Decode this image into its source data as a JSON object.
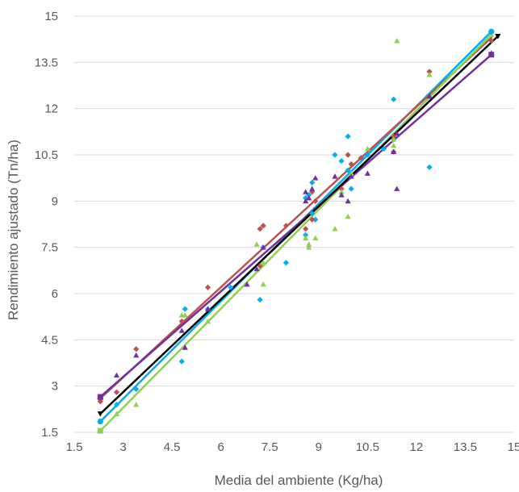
{
  "chart_data": {
    "type": "scatter",
    "title": "",
    "xlabel": "Media del ambiente (Kg/ha)",
    "ylabel": "Rendimiento ajustado (Tn/ha)",
    "xlim": [
      1.5,
      15
    ],
    "ylim": [
      1.5,
      15
    ],
    "xticks": [
      "1.5",
      "3",
      "4.5",
      "6",
      "7.5",
      "9",
      "10.5",
      "12",
      "13.5",
      "15"
    ],
    "yticks": [
      "1.5",
      "3",
      "4.5",
      "6",
      "7.5",
      "9",
      "10.5",
      "12",
      "13.5",
      "15"
    ],
    "grid": "horizontal",
    "legend": "none",
    "series": [
      {
        "color": "#00b0f0",
        "marker": "diamond",
        "points": [
          [
            2.3,
            1.85
          ],
          [
            2.8,
            2.4
          ],
          [
            3.4,
            2.9
          ],
          [
            4.8,
            3.8
          ],
          [
            4.9,
            5.5
          ],
          [
            5.6,
            5.5
          ],
          [
            6.3,
            6.2
          ],
          [
            7.2,
            5.8
          ],
          [
            7.3,
            7.5
          ],
          [
            8.0,
            7.0
          ],
          [
            8.6,
            7.9
          ],
          [
            8.6,
            9.1
          ],
          [
            8.7,
            9.2
          ],
          [
            8.8,
            9.6
          ],
          [
            8.8,
            8.6
          ],
          [
            8.9,
            8.4
          ],
          [
            9.5,
            10.5
          ],
          [
            9.7,
            10.3
          ],
          [
            9.9,
            10.0
          ],
          [
            9.9,
            11.1
          ],
          [
            10.0,
            9.4
          ],
          [
            10.3,
            10.4
          ],
          [
            10.5,
            10.5
          ],
          [
            11.0,
            10.7
          ],
          [
            11.3,
            12.3
          ],
          [
            11.3,
            11.0
          ],
          [
            12.4,
            10.1
          ],
          [
            14.3,
            14.5
          ]
        ],
        "fit": [
          [
            2.3,
            1.85
          ],
          [
            14.3,
            14.5
          ]
        ]
      },
      {
        "color": "#c0504d",
        "marker": "diamond",
        "points": [
          [
            2.3,
            2.5
          ],
          [
            2.8,
            2.8
          ],
          [
            3.4,
            4.2
          ],
          [
            4.8,
            5.1
          ],
          [
            5.6,
            6.2
          ],
          [
            7.2,
            8.1
          ],
          [
            7.3,
            8.2
          ],
          [
            7.2,
            6.9
          ],
          [
            8.0,
            8.2
          ],
          [
            8.6,
            8.1
          ],
          [
            8.8,
            8.4
          ],
          [
            8.8,
            9.3
          ],
          [
            8.9,
            9.0
          ],
          [
            9.7,
            9.4
          ],
          [
            9.9,
            10.5
          ],
          [
            10.0,
            10.2
          ],
          [
            10.3,
            10.4
          ],
          [
            11.3,
            11.1
          ],
          [
            11.3,
            10.6
          ],
          [
            12.4,
            13.2
          ],
          [
            14.3,
            14.2
          ]
        ],
        "fit": [
          [
            2.3,
            2.6
          ],
          [
            14.3,
            14.3
          ]
        ]
      },
      {
        "color": "#92d050",
        "marker": "triangle",
        "points": [
          [
            2.3,
            1.55
          ],
          [
            2.8,
            2.1
          ],
          [
            3.4,
            2.4
          ],
          [
            4.8,
            5.3
          ],
          [
            4.9,
            5.3
          ],
          [
            5.6,
            5.1
          ],
          [
            7.1,
            7.6
          ],
          [
            7.3,
            7.0
          ],
          [
            7.3,
            6.3
          ],
          [
            8.6,
            7.8
          ],
          [
            8.7,
            7.5
          ],
          [
            8.7,
            7.6
          ],
          [
            8.9,
            7.8
          ],
          [
            9.5,
            8.1
          ],
          [
            9.7,
            9.3
          ],
          [
            9.9,
            8.5
          ],
          [
            10.0,
            9.9
          ],
          [
            10.5,
            10.7
          ],
          [
            11.3,
            11.0
          ],
          [
            11.3,
            10.8
          ],
          [
            11.4,
            14.2
          ],
          [
            12.4,
            13.1
          ],
          [
            14.3,
            14.4
          ]
        ],
        "fit": [
          [
            2.3,
            1.55
          ],
          [
            14.3,
            14.4
          ]
        ]
      },
      {
        "color": "#7030a0",
        "marker": "triangle",
        "points": [
          [
            2.3,
            2.65
          ],
          [
            2.8,
            3.35
          ],
          [
            3.4,
            4.0
          ],
          [
            4.8,
            4.8
          ],
          [
            4.9,
            4.25
          ],
          [
            5.6,
            5.5
          ],
          [
            6.8,
            6.3
          ],
          [
            7.1,
            6.8
          ],
          [
            7.3,
            7.5
          ],
          [
            8.6,
            9.3
          ],
          [
            8.6,
            9.0
          ],
          [
            8.7,
            9.1
          ],
          [
            8.8,
            9.4
          ],
          [
            8.9,
            9.75
          ],
          [
            9.5,
            9.8
          ],
          [
            9.7,
            9.2
          ],
          [
            9.9,
            9.0
          ],
          [
            10.0,
            9.8
          ],
          [
            10.5,
            9.9
          ],
          [
            11.3,
            10.6
          ],
          [
            11.4,
            9.4
          ],
          [
            11.4,
            11.2
          ],
          [
            12.4,
            12.4
          ],
          [
            14.3,
            13.8
          ]
        ],
        "fit": [
          [
            2.3,
            2.65
          ],
          [
            14.3,
            13.75
          ]
        ]
      },
      {
        "color": "#000000",
        "marker": "triangle-down",
        "points": [
          [
            2.3,
            2.1
          ],
          [
            14.5,
            14.35
          ]
        ],
        "fit": [
          [
            2.3,
            2.1
          ],
          [
            14.5,
            14.35
          ]
        ]
      }
    ]
  }
}
